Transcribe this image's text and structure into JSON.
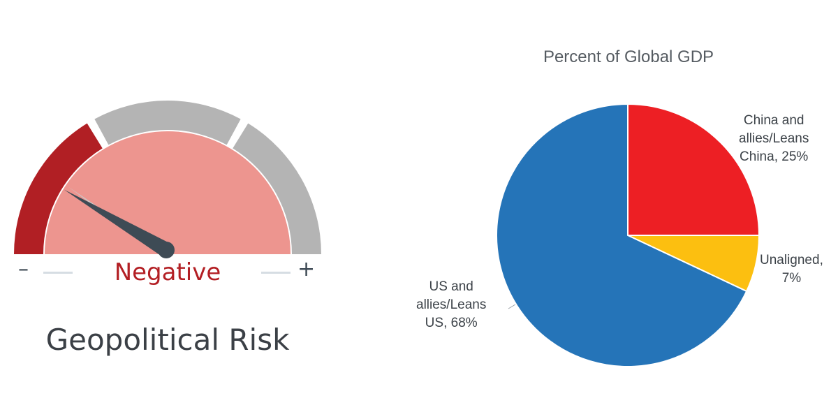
{
  "gauge": {
    "status": "Negative",
    "title": "Geopolitical Risk",
    "minus_symbol": "–",
    "plus_symbol": "+",
    "level": 0.17,
    "colors": {
      "negative_band": "#b11f24",
      "neutral_band": "#b4b4b4",
      "fill": "#ed958f",
      "needle": "#3e4b55"
    }
  },
  "chart_data": {
    "type": "pie",
    "title": "Percent of Global GDP",
    "slices": [
      {
        "label_lines": [
          "China and",
          "allies/Leans",
          "China, 25%"
        ],
        "value": 25,
        "color": "#ed1f24"
      },
      {
        "label_lines": [
          "Unaligned,",
          "7%"
        ],
        "value": 7,
        "color": "#fcbf10"
      },
      {
        "label_lines": [
          "US and",
          "allies/Leans",
          "US, 68%"
        ],
        "value": 68,
        "color": "#2574b8"
      }
    ]
  }
}
